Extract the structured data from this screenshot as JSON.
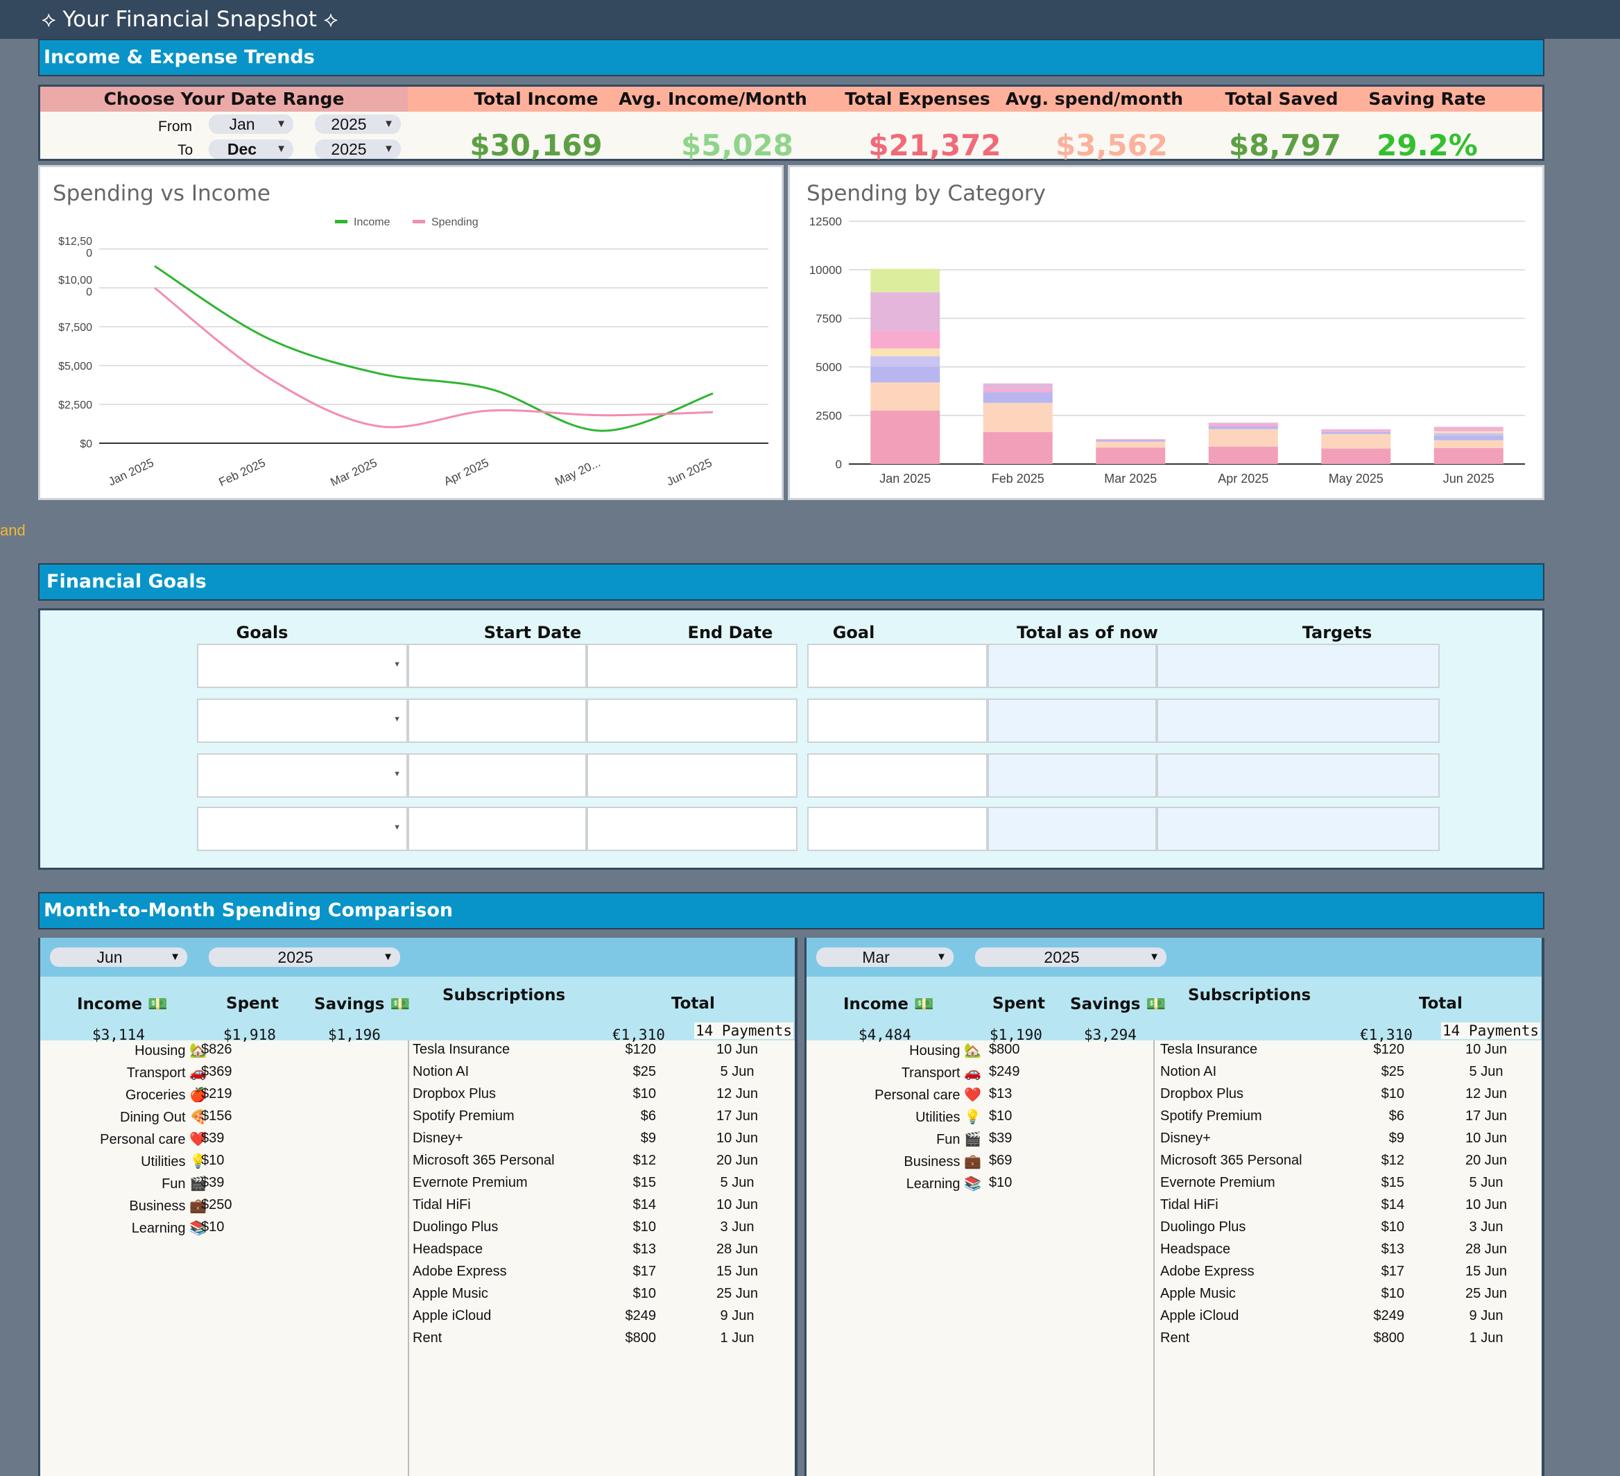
{
  "app_title": "⟡ Your Financial Snapshot ⟡",
  "left_fragment": "and",
  "trends": {
    "header": "Income & Expense Trends",
    "date_range_label": "Choose Your Date Range",
    "from_label": "From",
    "to_label": "To",
    "from_month": "Jan",
    "from_year": "2025",
    "to_month": "Dec",
    "to_year": "2025",
    "kpis": [
      {
        "label": "Total Income",
        "value": "$30,169",
        "color": "#5ca044"
      },
      {
        "label": "Avg. Income/Month",
        "value": "$5,028",
        "color": "#8fd48a"
      },
      {
        "label": "Total Expenses",
        "value": "$21,372",
        "color": "#f06a78"
      },
      {
        "label": "Avg. spend/month",
        "value": "$3,562",
        "color": "#fbb29c"
      },
      {
        "label": "Total Saved",
        "value": "$8,797",
        "color": "#5ca044"
      },
      {
        "label": "Saving Rate",
        "value": "29.2%",
        "color": "#33c02f"
      }
    ],
    "head_colors": {
      "date_range": "#ebaaa7",
      "kpi": "#ffb09a"
    }
  },
  "chart_data": [
    {
      "type": "line",
      "title": "Spending vs Income",
      "categories": [
        "Jan 2025",
        "Feb 2025",
        "Mar 2025",
        "Apr 2025",
        "May 20...",
        "Jun 2025"
      ],
      "series": [
        {
          "name": "Income",
          "color": "#2fb52f",
          "values": [
            11400,
            6800,
            4500,
            3500,
            800,
            3200
          ]
        },
        {
          "name": "Spending",
          "color": "#f48cb4",
          "values": [
            10000,
            4300,
            1100,
            2100,
            1800,
            2000
          ]
        }
      ],
      "y_ticks": [
        "$12,50\n0",
        "$10,00\n0",
        "$7,500",
        "$5,000",
        "$2,500",
        "$0"
      ],
      "ylim": [
        0,
        12500
      ],
      "legend": "top"
    },
    {
      "type": "bar",
      "stacked": true,
      "title": "Spending by Category",
      "categories": [
        "Jan 2025",
        "Feb 2025",
        "Mar 2025",
        "Apr 2025",
        "May 2025",
        "Jun 2025"
      ],
      "y_ticks": [
        "12500",
        "10000",
        "7500",
        "5000",
        "2500",
        "0"
      ],
      "ylim": [
        0,
        12500
      ],
      "series": [
        {
          "color": "#f2a0b9",
          "values": [
            2750,
            1650,
            850,
            900,
            800,
            826
          ]
        },
        {
          "color": "#fdd5bd",
          "values": [
            1450,
            1500,
            300,
            900,
            750,
            400
          ]
        },
        {
          "color": "#b8b6ee",
          "values": [
            800,
            550,
            80,
            150,
            100,
            220
          ]
        },
        {
          "color": "#c9c4f0",
          "values": [
            550,
            0,
            0,
            0,
            0,
            150
          ]
        },
        {
          "color": "#f9e3b5",
          "values": [
            400,
            0,
            0,
            0,
            0,
            100
          ]
        },
        {
          "color": "#f9aacf",
          "values": [
            900,
            150,
            50,
            100,
            60,
            120
          ]
        },
        {
          "color": "#e4b6dc",
          "values": [
            2000,
            300,
            0,
            80,
            80,
            100
          ]
        },
        {
          "color": "#dcee9e",
          "values": [
            1200,
            0,
            0,
            0,
            0,
            0
          ]
        }
      ]
    }
  ],
  "goals": {
    "header": "Financial Goals",
    "columns": [
      "Goals",
      "Start Date",
      "End Date",
      "Goal",
      "Total as of now",
      "Targets"
    ],
    "rows": 4
  },
  "comparison": {
    "header": "Month-to-Month Spending Comparison",
    "panels": [
      {
        "month": "Jun",
        "year": "2025",
        "income_label": "Income 💵",
        "spent_label": "Spent",
        "savings_label": "Savings 💵",
        "subs_label": "Subscriptions",
        "total_label": "Total",
        "income": "$3,114",
        "spent": "$1,918",
        "savings": "$1,196",
        "subs_total": "€1,310",
        "payments": "14 Payments",
        "categories": [
          {
            "name": "Housing 🏡",
            "value": "$826"
          },
          {
            "name": "Transport 🚗",
            "value": "$369"
          },
          {
            "name": "Groceries 🍎",
            "value": "$219"
          },
          {
            "name": "Dining Out 🍕",
            "value": "$156"
          },
          {
            "name": "Personal care ❤️",
            "value": "$39"
          },
          {
            "name": "Utilities 💡",
            "value": "$10"
          },
          {
            "name": "Fun 🎬",
            "value": "$39"
          },
          {
            "name": "Business 💼",
            "value": "$250"
          },
          {
            "name": "Learning 📚",
            "value": "$10"
          }
        ],
        "subscriptions": [
          {
            "name": "Tesla Insurance",
            "amount": "$120",
            "date": "10 Jun"
          },
          {
            "name": "Notion AI",
            "amount": "$25",
            "date": "5 Jun"
          },
          {
            "name": "Dropbox Plus",
            "amount": "$10",
            "date": "12 Jun"
          },
          {
            "name": "Spotify Premium",
            "amount": "$6",
            "date": "17 Jun"
          },
          {
            "name": "Disney+",
            "amount": "$9",
            "date": "10 Jun"
          },
          {
            "name": "Microsoft 365 Personal",
            "amount": "$12",
            "date": "20 Jun"
          },
          {
            "name": "Evernote Premium",
            "amount": "$15",
            "date": "5 Jun"
          },
          {
            "name": "Tidal HiFi",
            "amount": "$14",
            "date": "10 Jun"
          },
          {
            "name": "Duolingo Plus",
            "amount": "$10",
            "date": "3 Jun"
          },
          {
            "name": "Headspace",
            "amount": "$13",
            "date": "28 Jun"
          },
          {
            "name": "Adobe Express",
            "amount": "$17",
            "date": "15 Jun"
          },
          {
            "name": "Apple Music",
            "amount": "$10",
            "date": "25 Jun"
          },
          {
            "name": "Apple iCloud",
            "amount": "$249",
            "date": "9 Jun"
          },
          {
            "name": "Rent",
            "amount": "$800",
            "date": "1 Jun"
          }
        ]
      },
      {
        "month": "Mar",
        "year": "2025",
        "income_label": "Income 💵",
        "spent_label": "Spent",
        "savings_label": "Savings 💵",
        "subs_label": "Subscriptions",
        "total_label": "Total",
        "income": "$4,484",
        "spent": "$1,190",
        "savings": "$3,294",
        "subs_total": "€1,310",
        "payments": "14 Payments",
        "categories": [
          {
            "name": "Housing 🏡",
            "value": "$800"
          },
          {
            "name": "Transport 🚗",
            "value": "$249"
          },
          {
            "name": "Personal care ❤️",
            "value": "$13"
          },
          {
            "name": "Utilities 💡",
            "value": "$10"
          },
          {
            "name": "Fun 🎬",
            "value": "$39"
          },
          {
            "name": "Business 💼",
            "value": "$69"
          },
          {
            "name": "Learning 📚",
            "value": "$10"
          }
        ],
        "subscriptions": [
          {
            "name": "Tesla Insurance",
            "amount": "$120",
            "date": "10 Jun"
          },
          {
            "name": "Notion AI",
            "amount": "$25",
            "date": "5 Jun"
          },
          {
            "name": "Dropbox Plus",
            "amount": "$10",
            "date": "12 Jun"
          },
          {
            "name": "Spotify Premium",
            "amount": "$6",
            "date": "17 Jun"
          },
          {
            "name": "Disney+",
            "amount": "$9",
            "date": "10 Jun"
          },
          {
            "name": "Microsoft 365 Personal",
            "amount": "$12",
            "date": "20 Jun"
          },
          {
            "name": "Evernote Premium",
            "amount": "$15",
            "date": "5 Jun"
          },
          {
            "name": "Tidal HiFi",
            "amount": "$14",
            "date": "10 Jun"
          },
          {
            "name": "Duolingo Plus",
            "amount": "$10",
            "date": "3 Jun"
          },
          {
            "name": "Headspace",
            "amount": "$13",
            "date": "28 Jun"
          },
          {
            "name": "Adobe Express",
            "amount": "$17",
            "date": "15 Jun"
          },
          {
            "name": "Apple Music",
            "amount": "$10",
            "date": "25 Jun"
          },
          {
            "name": "Apple iCloud",
            "amount": "$249",
            "date": "9 Jun"
          },
          {
            "name": "Rent",
            "amount": "$800",
            "date": "1 Jun"
          }
        ]
      }
    ]
  }
}
